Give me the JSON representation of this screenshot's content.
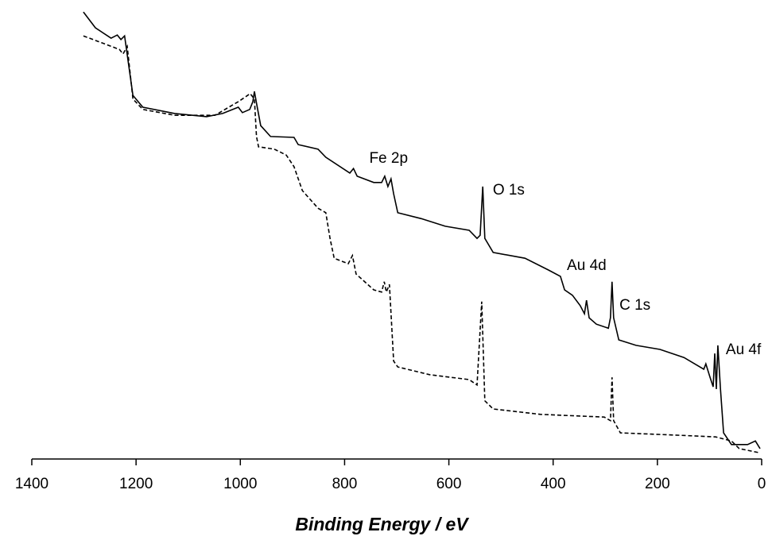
{
  "chart_data": {
    "type": "line",
    "x_label": "Binding Energy / eV",
    "xlim": [
      1400,
      0
    ],
    "xticks": [
      1400,
      1200,
      1000,
      800,
      600,
      400,
      200,
      0
    ],
    "ylim": [
      0,
      100
    ],
    "annotations": [
      {
        "text": "Fe 2p",
        "x": 710
      },
      {
        "text": "O 1s",
        "x": 531
      },
      {
        "text": "Au 4d",
        "x": 340
      },
      {
        "text": "C 1s",
        "x": 285
      },
      {
        "text": "Au 4f",
        "x": 84
      }
    ],
    "series": [
      {
        "color": "#000000",
        "line_style": "solid",
        "x": [
          1301,
          1278,
          1248,
          1236,
          1229,
          1222,
          1206,
          1187,
          1126,
          1065,
          1034,
          1004,
          996,
          982,
          976,
          973,
          969,
          961,
          942,
          897,
          889,
          851,
          836,
          790,
          783,
          776,
          744,
          729,
          723,
          717,
          711,
          706,
          698,
          653,
          607,
          561,
          546,
          540,
          535,
          531,
          515,
          454,
          409,
          386,
          378,
          363,
          348,
          340,
          336,
          331,
          317,
          294,
          290,
          287,
          284,
          274,
          241,
          195,
          149,
          111,
          107,
          99,
          93,
          90,
          87,
          84,
          79,
          73,
          58,
          27,
          12,
          3
        ],
        "values": [
          99.1,
          95.6,
          93.3,
          94.0,
          93.0,
          93.8,
          80.6,
          78.0,
          76.6,
          75.9,
          76.6,
          78.0,
          76.8,
          77.5,
          79.2,
          81.5,
          78.9,
          73.9,
          71.5,
          71.3,
          69.7,
          68.7,
          66.9,
          63.4,
          64.4,
          62.7,
          61.3,
          61.3,
          62.7,
          60.4,
          62.1,
          58.8,
          54.6,
          53.3,
          51.6,
          50.7,
          48.9,
          49.6,
          60.4,
          48.9,
          45.8,
          44.5,
          41.9,
          40.5,
          37.5,
          36.3,
          34.0,
          32.2,
          35.2,
          31.3,
          29.9,
          29.0,
          31.3,
          39.3,
          31.3,
          26.4,
          25.2,
          24.3,
          22.5,
          19.9,
          21.1,
          18.1,
          16.0,
          23.4,
          15.5,
          25.2,
          15.5,
          5.8,
          3.2,
          3.2,
          4.0,
          2.3
        ]
      },
      {
        "color": "#000000",
        "line_style": "dashed",
        "x": [
          1301,
          1248,
          1232,
          1225,
          1217,
          1206,
          1187,
          1126,
          1049,
          1004,
          981,
          973,
          969,
          965,
          935,
          912,
          897,
          881,
          851,
          836,
          828,
          820,
          793,
          785,
          778,
          744,
          729,
          724,
          720,
          714,
          706,
          698,
          637,
          561,
          546,
          537,
          531,
          515,
          424,
          302,
          290,
          287,
          284,
          271,
          165,
          88,
          58,
          43,
          5
        ],
        "values": [
          93.8,
          91.5,
          90.8,
          89.8,
          91.5,
          79.8,
          77.5,
          76.2,
          76.2,
          79.2,
          81.0,
          79.8,
          71.5,
          69.2,
          68.7,
          67.4,
          64.8,
          59.5,
          55.6,
          54.6,
          48.9,
          44.5,
          43.3,
          45.1,
          41.0,
          37.5,
          37.0,
          39.3,
          37.0,
          38.7,
          21.7,
          20.4,
          18.7,
          17.6,
          16.4,
          34.9,
          12.9,
          11.1,
          9.9,
          9.3,
          8.5,
          18.1,
          8.5,
          5.8,
          5.3,
          4.9,
          4.0,
          2.3,
          1.4
        ]
      }
    ]
  }
}
